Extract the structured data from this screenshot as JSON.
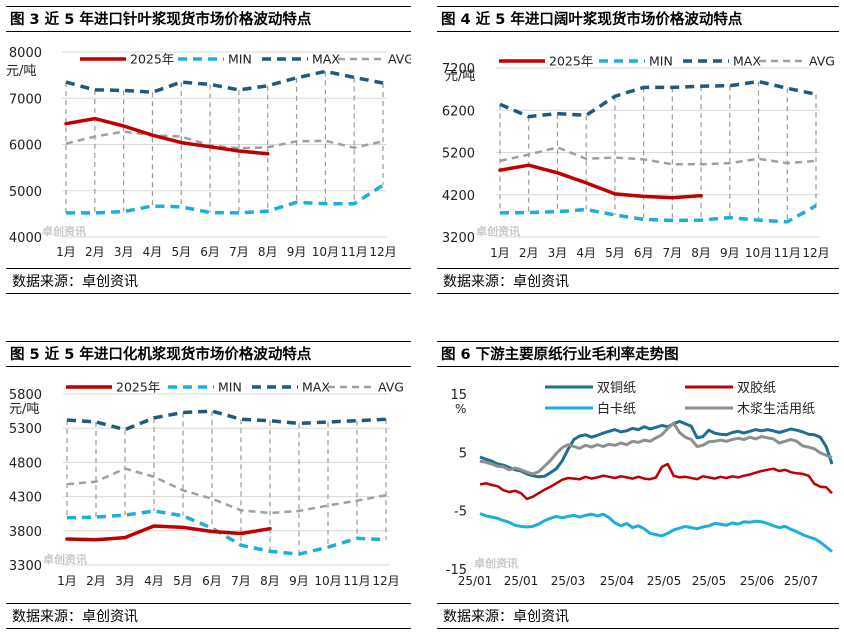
{
  "source_prefix": "数据来源：",
  "source_name": "卓创资讯",
  "watermark": "卓创资讯",
  "chart_data": [
    {
      "id": "fig3",
      "type": "line",
      "title": "图 3  近 5 年进口针叶浆现货市场价格波动特点",
      "ylabel": "元/吨",
      "ylim": [
        4000,
        8000
      ],
      "yticks": [
        "4000",
        "5000",
        "6000",
        "7000",
        "8000"
      ],
      "categories": [
        "1月",
        "2月",
        "3月",
        "4月",
        "5月",
        "6月",
        "7月",
        "8月",
        "9月",
        "10月",
        "11月",
        "12月"
      ],
      "series": [
        {
          "name": "2025年",
          "color": "#c00000",
          "dash": "",
          "width": 3.5,
          "values": [
            6450,
            6560,
            6400,
            6200,
            6040,
            5950,
            5860,
            5800,
            null,
            null,
            null,
            null
          ]
        },
        {
          "name": "MIN",
          "color": "#1eaedb",
          "dash": "9,6",
          "width": 3.5,
          "values": [
            4520,
            4520,
            4550,
            4670,
            4650,
            4530,
            4520,
            4560,
            4750,
            4720,
            4720,
            5120
          ]
        },
        {
          "name": "MAX",
          "color": "#1f5a7e",
          "dash": "9,6",
          "width": 3.5,
          "values": [
            7350,
            7180,
            7170,
            7130,
            7350,
            7300,
            7180,
            7270,
            7440,
            7580,
            7450,
            7330
          ]
        },
        {
          "name": "AVG",
          "color": "#a0a0a0",
          "dash": "7,5",
          "width": 2.5,
          "values": [
            6020,
            6170,
            6280,
            6200,
            6170,
            5980,
            5920,
            5940,
            6070,
            6080,
            5930,
            6070
          ]
        }
      ]
    },
    {
      "id": "fig4",
      "type": "line",
      "title": "图 4  近 5 年进口阔叶浆现货市场价格波动特点",
      "ylabel": "元/吨",
      "ylim": [
        3200,
        7200
      ],
      "yticks": [
        "3200",
        "4200",
        "5200",
        "6200",
        "7200"
      ],
      "categories": [
        "1月",
        "2月",
        "3月",
        "4月",
        "5月",
        "6月",
        "7月",
        "8月",
        "9月",
        "10月",
        "11月",
        "12月"
      ],
      "series": [
        {
          "name": "2025年",
          "color": "#c00000",
          "dash": "",
          "width": 3.5,
          "values": [
            4780,
            4900,
            4720,
            4480,
            4220,
            4160,
            4130,
            4180,
            null,
            null,
            null,
            null
          ]
        },
        {
          "name": "MIN",
          "color": "#1eaedb",
          "dash": "9,6",
          "width": 3.5,
          "values": [
            3770,
            3780,
            3800,
            3850,
            3720,
            3620,
            3590,
            3600,
            3660,
            3600,
            3560,
            3940
          ]
        },
        {
          "name": "MAX",
          "color": "#1f5a7e",
          "dash": "9,6",
          "width": 3.5,
          "values": [
            6340,
            6050,
            6120,
            6080,
            6530,
            6740,
            6740,
            6770,
            6780,
            6880,
            6720,
            6580
          ]
        },
        {
          "name": "AVG",
          "color": "#a0a0a0",
          "dash": "7,5",
          "width": 2.5,
          "values": [
            5000,
            5150,
            5320,
            5050,
            5080,
            5040,
            4920,
            4920,
            4950,
            5050,
            4950,
            5000
          ]
        }
      ]
    },
    {
      "id": "fig5",
      "type": "line",
      "title": "图 5  近 5 年进口化机浆现货市场价格波动特点",
      "ylabel": "元/吨",
      "ylim": [
        3300,
        5800
      ],
      "yticks": [
        "3300",
        "3800",
        "4300",
        "4800",
        "5300",
        "5800"
      ],
      "categories": [
        "1月",
        "2月",
        "3月",
        "4月",
        "5月",
        "6月",
        "7月",
        "8月",
        "9月",
        "10月",
        "11月",
        "12月"
      ],
      "series": [
        {
          "name": "2025年",
          "color": "#c00000",
          "dash": "",
          "width": 3.5,
          "values": [
            3680,
            3670,
            3700,
            3870,
            3850,
            3790,
            3760,
            3830,
            null,
            null,
            null,
            null
          ]
        },
        {
          "name": "MIN",
          "color": "#1eaedb",
          "dash": "9,6",
          "width": 3.5,
          "values": [
            3990,
            4000,
            4030,
            4090,
            4020,
            3840,
            3590,
            3500,
            3460,
            3560,
            3690,
            3670
          ]
        },
        {
          "name": "MAX",
          "color": "#1f5a7e",
          "dash": "9,6",
          "width": 3.5,
          "values": [
            5420,
            5390,
            5280,
            5450,
            5530,
            5550,
            5430,
            5410,
            5370,
            5390,
            5410,
            5430
          ]
        },
        {
          "name": "AVG",
          "color": "#a0a0a0",
          "dash": "7,5",
          "width": 2.5,
          "values": [
            4480,
            4520,
            4710,
            4590,
            4390,
            4270,
            4100,
            4060,
            4090,
            4170,
            4240,
            4320
          ]
        }
      ]
    },
    {
      "id": "fig6",
      "type": "line",
      "title": "图 6  下游主要原纸行业毛利率走势图",
      "ylabel": "%",
      "ylim": [
        -15,
        15
      ],
      "yticks": [
        "-15",
        "-5",
        "5",
        "15"
      ],
      "xticks": [
        "25/01",
        "25/01",
        "25/03",
        "25/04",
        "25/05",
        "25/05",
        "25/06",
        "25/07"
      ],
      "series": [
        {
          "name": "双铜纸",
          "color": "#1f6e95",
          "width": 3,
          "values": [
            4.2,
            3.8,
            3.5,
            3.0,
            2.8,
            2.4,
            2.0,
            1.8,
            1.3,
            1.0,
            0.8,
            0.9,
            1.5,
            2.2,
            3.5,
            5.5,
            7.2,
            7.8,
            8.0,
            7.6,
            7.9,
            8.3,
            8.6,
            8.9,
            8.5,
            8.7,
            9.1,
            8.9,
            9.4,
            9.0,
            9.3,
            9.6,
            9.4,
            9.9,
            10.3,
            9.9,
            9.5,
            7.5,
            7.7,
            8.8,
            8.3,
            8.1,
            8.0,
            8.4,
            8.6,
            8.3,
            8.6,
            8.9,
            8.7,
            8.9,
            8.7,
            8.4,
            8.7,
            9.0,
            8.8,
            8.5,
            8.1,
            8.0,
            7.6,
            6.0,
            3.0
          ]
        },
        {
          "name": "双胶纸",
          "color": "#c00000",
          "width": 2.5,
          "values": [
            -0.5,
            -0.3,
            -0.6,
            -0.8,
            -1.5,
            -1.8,
            -1.6,
            -2.0,
            -3.0,
            -2.6,
            -2.0,
            -1.4,
            -0.9,
            -0.3,
            0.3,
            0.6,
            0.5,
            0.4,
            0.8,
            0.5,
            0.7,
            1.0,
            0.8,
            0.6,
            0.9,
            0.7,
            0.5,
            0.8,
            0.5,
            0.4,
            0.7,
            2.5,
            3.0,
            1.0,
            0.7,
            0.8,
            0.6,
            0.4,
            0.9,
            0.7,
            0.5,
            0.8,
            0.6,
            0.9,
            0.7,
            1.0,
            1.2,
            1.5,
            1.8,
            2.0,
            2.2,
            1.8,
            2.0,
            1.6,
            1.4,
            1.3,
            1.0,
            -0.4,
            -0.9,
            -1.0,
            -2.0
          ]
        },
        {
          "name": "白卡纸",
          "color": "#1eaedb",
          "width": 3,
          "values": [
            -5.5,
            -5.9,
            -6.1,
            -6.3,
            -6.7,
            -7.0,
            -7.5,
            -7.7,
            -7.8,
            -7.7,
            -7.3,
            -6.7,
            -6.3,
            -6.0,
            -6.2,
            -6.0,
            -5.8,
            -6.1,
            -5.8,
            -5.6,
            -5.9,
            -5.6,
            -6.2,
            -7.1,
            -7.6,
            -7.2,
            -7.9,
            -7.6,
            -8.1,
            -8.9,
            -9.1,
            -9.3,
            -8.9,
            -8.3,
            -8.0,
            -7.7,
            -7.9,
            -8.1,
            -7.8,
            -7.6,
            -7.2,
            -7.3,
            -7.5,
            -7.1,
            -7.3,
            -6.9,
            -7.0,
            -6.8,
            -6.9,
            -7.2,
            -7.6,
            -7.9,
            -7.7,
            -8.2,
            -8.6,
            -9.1,
            -9.5,
            -9.8,
            -10.4,
            -11.2,
            -12.0
          ]
        },
        {
          "name": "木浆生活用纸",
          "color": "#8f8f8f",
          "width": 3,
          "values": [
            3.5,
            3.3,
            3.0,
            2.6,
            2.5,
            2.0,
            2.3,
            2.0,
            1.6,
            1.3,
            1.7,
            2.6,
            3.6,
            4.8,
            5.8,
            6.3,
            6.0,
            5.7,
            6.2,
            5.9,
            6.3,
            6.0,
            6.4,
            6.2,
            6.6,
            6.3,
            6.9,
            6.7,
            7.1,
            6.9,
            7.5,
            8.0,
            9.1,
            10.0,
            8.4,
            7.6,
            7.2,
            6.0,
            6.2,
            6.8,
            6.9,
            7.1,
            6.9,
            7.2,
            7.4,
            7.2,
            7.6,
            7.3,
            7.7,
            7.5,
            7.3,
            6.6,
            6.9,
            7.2,
            6.9,
            6.1,
            5.9,
            5.6,
            4.9,
            4.5,
            4.1
          ]
        }
      ]
    }
  ]
}
